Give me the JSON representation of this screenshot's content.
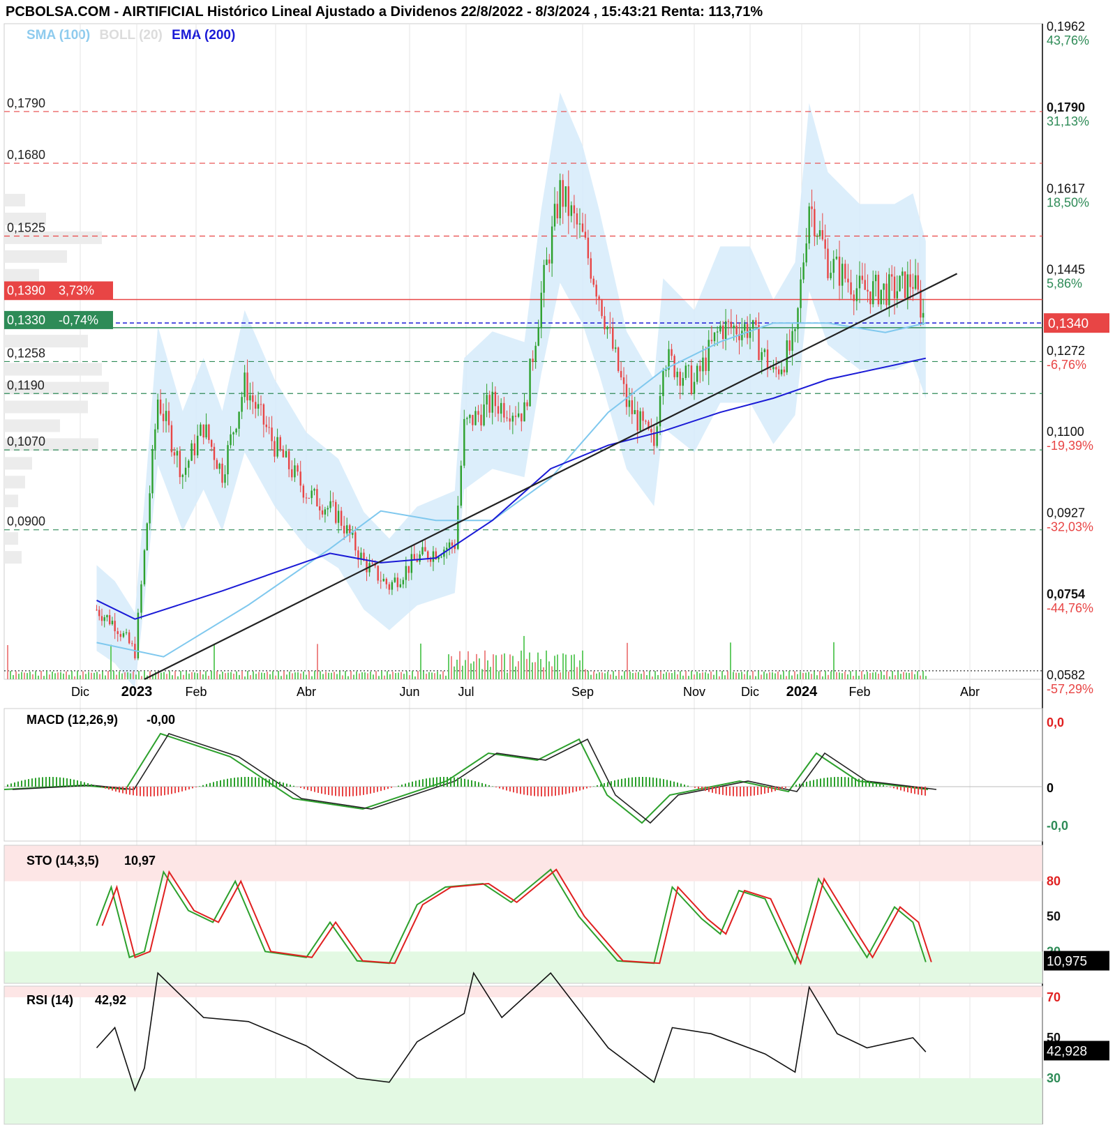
{
  "header": {
    "title": "PCBOLSA.COM - AIRTIFICIAL Histórico Lineal Ajustado a Dividenos 22/8/2022 - 8/3/2024 , 15:43:21 Renta: 113,71%"
  },
  "legend": {
    "sma": "SMA (100)",
    "boll": "BOLL (20)",
    "ema": "EMA (200)"
  },
  "colors": {
    "up": "#2ca02c",
    "down": "#e84545",
    "sma": "#7fc8ee",
    "ema": "#1a1ad6",
    "band": "#d6ebfa",
    "resistance": "#e84545",
    "support": "#2e8b57",
    "current": "#e84545"
  },
  "price_axis": {
    "right_labels": [
      {
        "value": "0,1962",
        "pct": "43,76%",
        "pct_color": "#2e8b57"
      },
      {
        "value": "0,1790",
        "pct": "31,13%",
        "pct_color": "#2e8b57",
        "bold": true
      },
      {
        "value": "0,1617",
        "pct": "18,50%",
        "pct_color": "#2e8b57"
      },
      {
        "value": "0,1445",
        "pct": "5,86%",
        "pct_color": "#2e8b57"
      },
      {
        "value": "0,1272",
        "pct": "-6,76%",
        "pct_color": "#e84545"
      },
      {
        "value": "0,1100",
        "pct": "-19,39%",
        "pct_color": "#e84545"
      },
      {
        "value": "0,0927",
        "pct": "-32,03%",
        "pct_color": "#e84545"
      },
      {
        "value": "0,0754",
        "pct": "-44,76%",
        "pct_color": "#e84545",
        "bold": true
      },
      {
        "value": "0,0582",
        "pct": "-57,29%",
        "pct_color": "#e84545"
      }
    ],
    "current_price": "0,1340",
    "level_labels": [
      "0,1790",
      "0,1680",
      "0,1525",
      "0,1258",
      "0,1190",
      "0,1070",
      "0,0900"
    ],
    "box_red": {
      "value": "0,1390",
      "pct": "3,73%"
    },
    "box_green": {
      "value": "0,1330",
      "pct": "-0,74%"
    }
  },
  "time_axis": {
    "labels": [
      "Dic",
      "2023",
      "Feb",
      "Abr",
      "Jun",
      "Jul",
      "Sep",
      "Nov",
      "Dic",
      "2024",
      "Feb",
      "Abr"
    ]
  },
  "macd": {
    "label": "MACD (12,26,9)",
    "value": "-0,00",
    "ticks": [
      "0,0",
      "0",
      "-0,0"
    ]
  },
  "sto": {
    "label": "STO (14,3,5)",
    "value": "10,97",
    "ticks": [
      "80",
      "50",
      "20"
    ],
    "current": "10,975"
  },
  "rsi": {
    "label": "RSI (14)",
    "value": "42,92",
    "ticks": [
      "70",
      "50",
      "30"
    ],
    "current": "42,928"
  },
  "chart_data": {
    "type": "candlestick",
    "title": "PCBOLSA.COM - AIRTIFICIAL Histórico Lineal Ajustado a Dividenos 22/8/2022 - 8/3/2024 , 15:43:21 Renta: 113,71%",
    "ylim": [
      0.0582,
      0.1962
    ],
    "price_path": [
      [
        "2022-12-10",
        0.073
      ],
      [
        "2022-12-20",
        0.07
      ],
      [
        "2022-12-31",
        0.064
      ],
      [
        "2023-01-05",
        0.085
      ],
      [
        "2023-01-12",
        0.118
      ],
      [
        "2023-01-25",
        0.102
      ],
      [
        "2023-02-05",
        0.112
      ],
      [
        "2023-02-15",
        0.102
      ],
      [
        "2023-02-27",
        0.121
      ],
      [
        "2023-03-15",
        0.108
      ],
      [
        "2023-04-01",
        0.098
      ],
      [
        "2023-04-20",
        0.093
      ],
      [
        "2023-05-05",
        0.083
      ],
      [
        "2023-05-20",
        0.078
      ],
      [
        "2023-06-05",
        0.084
      ],
      [
        "2023-06-25",
        0.087
      ],
      [
        "2023-06-30",
        0.112
      ],
      [
        "2023-07-15",
        0.117
      ],
      [
        "2023-08-01",
        0.115
      ],
      [
        "2023-08-10",
        0.14
      ],
      [
        "2023-08-20",
        0.162
      ],
      [
        "2023-09-01",
        0.152
      ],
      [
        "2023-09-10",
        0.14
      ],
      [
        "2023-09-25",
        0.117
      ],
      [
        "2023-10-10",
        0.108
      ],
      [
        "2023-10-15",
        0.127
      ],
      [
        "2023-11-01",
        0.121
      ],
      [
        "2023-11-15",
        0.133
      ],
      [
        "2023-12-01",
        0.133
      ],
      [
        "2023-12-15",
        0.123
      ],
      [
        "2023-12-28",
        0.13
      ],
      [
        "2024-01-05",
        0.16
      ],
      [
        "2024-01-15",
        0.147
      ],
      [
        "2024-02-01",
        0.141
      ],
      [
        "2024-02-20",
        0.141
      ],
      [
        "2024-03-01",
        0.143
      ],
      [
        "2024-03-08",
        0.134
      ]
    ],
    "sma100": [
      [
        "2022-12-10",
        0.066
      ],
      [
        "2023-01-15",
        0.063
      ],
      [
        "2023-03-01",
        0.074
      ],
      [
        "2023-04-15",
        0.086
      ],
      [
        "2023-05-15",
        0.094
      ],
      [
        "2023-06-15",
        0.092
      ],
      [
        "2023-07-15",
        0.092
      ],
      [
        "2023-08-15",
        0.101
      ],
      [
        "2023-09-15",
        0.115
      ],
      [
        "2023-10-15",
        0.124
      ],
      [
        "2023-11-15",
        0.13
      ],
      [
        "2023-12-15",
        0.134
      ],
      [
        "2024-01-15",
        0.134
      ],
      [
        "2024-02-15",
        0.132
      ],
      [
        "2024-03-08",
        0.134
      ]
    ],
    "ema200": [
      [
        "2022-12-10",
        0.075
      ],
      [
        "2022-12-31",
        0.071
      ],
      [
        "2023-02-15",
        0.077
      ],
      [
        "2023-04-15",
        0.085
      ],
      [
        "2023-05-15",
        0.083
      ],
      [
        "2023-06-15",
        0.084
      ],
      [
        "2023-07-15",
        0.092
      ],
      [
        "2023-08-15",
        0.103
      ],
      [
        "2023-09-15",
        0.108
      ],
      [
        "2023-10-15",
        0.111
      ],
      [
        "2023-11-15",
        0.115
      ],
      [
        "2023-12-15",
        0.118
      ],
      [
        "2024-01-15",
        0.122
      ],
      [
        "2024-03-08",
        0.1265
      ]
    ],
    "trendline": [
      [
        "2023-01-05",
        0.0582
      ],
      [
        "2024-03-25",
        0.1445
      ]
    ],
    "resistance_levels": [
      0.179,
      0.168,
      0.1525
    ],
    "support_levels": [
      0.1258,
      0.119,
      0.107,
      0.09
    ],
    "current_price": 0.134,
    "box_levels": [
      0.139,
      0.133
    ],
    "dotted_level": 0.06,
    "macd_ticks": [
      "0,0",
      "0",
      "-0,0"
    ],
    "sto_levels": [
      80,
      50,
      20
    ],
    "sto_last": 10.975,
    "sto_path": [
      [
        "2022-12-10",
        42
      ],
      [
        "2022-12-18",
        75
      ],
      [
        "2022-12-28",
        15
      ],
      [
        "2023-01-05",
        20
      ],
      [
        "2023-01-15",
        88
      ],
      [
        "2023-01-28",
        55
      ],
      [
        "2023-02-10",
        45
      ],
      [
        "2023-02-22",
        80
      ],
      [
        "2023-03-10",
        20
      ],
      [
        "2023-04-01",
        15
      ],
      [
        "2023-04-15",
        45
      ],
      [
        "2023-05-01",
        12
      ],
      [
        "2023-05-20",
        10
      ],
      [
        "2023-06-05",
        60
      ],
      [
        "2023-06-20",
        75
      ],
      [
        "2023-07-10",
        78
      ],
      [
        "2023-07-25",
        62
      ],
      [
        "2023-08-15",
        90
      ],
      [
        "2023-08-30",
        50
      ],
      [
        "2023-09-20",
        12
      ],
      [
        "2023-10-10",
        10
      ],
      [
        "2023-10-20",
        75
      ],
      [
        "2023-11-05",
        48
      ],
      [
        "2023-11-15",
        35
      ],
      [
        "2023-11-25",
        72
      ],
      [
        "2023-12-10",
        65
      ],
      [
        "2023-12-28",
        10
      ],
      [
        "2024-01-10",
        82
      ],
      [
        "2024-01-28",
        35
      ],
      [
        "2024-02-05",
        15
      ],
      [
        "2024-02-20",
        58
      ],
      [
        "2024-03-01",
        45
      ],
      [
        "2024-03-08",
        11
      ]
    ],
    "rsi_levels": [
      70,
      50,
      30
    ],
    "rsi_last": 42.928,
    "rsi_path": [
      [
        "2022-12-10",
        45
      ],
      [
        "2022-12-20",
        55
      ],
      [
        "2022-12-31",
        24
      ],
      [
        "2023-01-05",
        35
      ],
      [
        "2023-01-12",
        82
      ],
      [
        "2023-02-05",
        60
      ],
      [
        "2023-03-01",
        58
      ],
      [
        "2023-04-01",
        46
      ],
      [
        "2023-05-01",
        30
      ],
      [
        "2023-05-20",
        28
      ],
      [
        "2023-06-05",
        48
      ],
      [
        "2023-06-30",
        62
      ],
      [
        "2023-07-05",
        82
      ],
      [
        "2023-07-20",
        60
      ],
      [
        "2023-08-15",
        82
      ],
      [
        "2023-09-15",
        45
      ],
      [
        "2023-10-10",
        28
      ],
      [
        "2023-10-20",
        55
      ],
      [
        "2023-11-10",
        52
      ],
      [
        "2023-12-10",
        42
      ],
      [
        "2023-12-28",
        33
      ],
      [
        "2024-01-05",
        75
      ],
      [
        "2024-01-20",
        52
      ],
      [
        "2024-02-05",
        45
      ],
      [
        "2024-02-20",
        48
      ],
      [
        "2024-03-01",
        50
      ],
      [
        "2024-03-08",
        43
      ]
    ]
  }
}
